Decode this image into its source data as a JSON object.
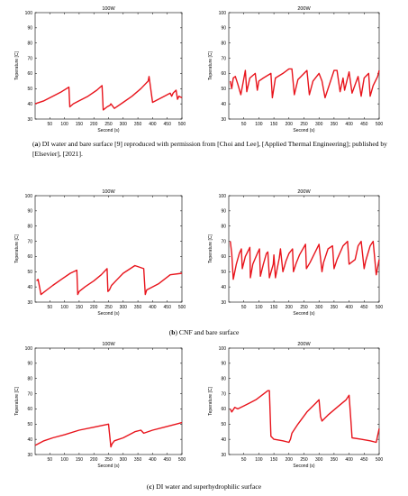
{
  "panels": [
    {
      "label": "a",
      "caption": "DI water and bare surface [9] reproduced with permission from [Choi and Lee], [Applied Thermal Engineering]; published by [Elsevier], [2021]."
    },
    {
      "label": "b",
      "caption": "CNF and bare surface"
    },
    {
      "label": "c",
      "caption": "DI water and superhydrophilic surface"
    }
  ],
  "colors": {
    "line": "#e8141c",
    "axis": "#000000"
  },
  "chart_data": [
    {
      "type": "line",
      "title": "100W",
      "xlabel": "Second (s)",
      "ylabel": "Teperature [C]",
      "xlim": [
        0,
        500
      ],
      "ylim": [
        30,
        100
      ],
      "xticks": [
        50,
        100,
        150,
        200,
        250,
        300,
        350,
        400,
        450,
        500
      ],
      "yticks": [
        30,
        40,
        50,
        60,
        70,
        80,
        90,
        100
      ],
      "series": [
        {
          "x": [
            0,
            30,
            60,
            90,
            115,
            118,
            130,
            150,
            180,
            210,
            228,
            232,
            245,
            255,
            258,
            270,
            300,
            330,
            360,
            385,
            388,
            400,
            420,
            440,
            460,
            465,
            470,
            480,
            485,
            490,
            500
          ],
          "y": [
            40,
            42,
            45,
            48,
            51,
            38,
            40,
            42,
            45,
            49,
            52,
            36,
            38,
            39,
            40,
            37,
            41,
            45,
            50,
            55,
            58,
            41,
            43,
            45,
            47,
            45,
            47,
            49,
            43,
            45,
            44
          ]
        }
      ]
    },
    {
      "type": "line",
      "title": "200W",
      "xlabel": "Second (s)",
      "ylabel": "Teperature [C]",
      "xlim": [
        0,
        500
      ],
      "ylim": [
        30,
        100
      ],
      "xticks": [
        50,
        100,
        150,
        200,
        250,
        300,
        350,
        400,
        450,
        500
      ],
      "yticks": [
        30,
        40,
        50,
        60,
        70,
        80,
        90,
        100
      ],
      "series": [
        {
          "x": [
            5,
            10,
            15,
            22,
            30,
            40,
            55,
            60,
            70,
            88,
            95,
            100,
            115,
            140,
            145,
            155,
            180,
            200,
            210,
            218,
            230,
            255,
            260,
            268,
            280,
            300,
            310,
            320,
            350,
            360,
            370,
            380,
            385,
            400,
            410,
            430,
            440,
            450,
            465,
            470,
            480,
            495,
            500
          ],
          "y": [
            55,
            50,
            57,
            58,
            53,
            46,
            62,
            48,
            57,
            60,
            49,
            55,
            57,
            60,
            44,
            57,
            60,
            63,
            63,
            46,
            56,
            61,
            62,
            46,
            55,
            60,
            55,
            44,
            62,
            62,
            48,
            57,
            49,
            61,
            47,
            58,
            45,
            57,
            60,
            45,
            52,
            58,
            62
          ]
        }
      ]
    },
    {
      "type": "line",
      "title": "100W",
      "xlabel": "Second (s)",
      "ylabel": "Teperature [C]",
      "xlim": [
        0,
        500
      ],
      "ylim": [
        30,
        100
      ],
      "xticks": [
        50,
        100,
        150,
        200,
        250,
        300,
        350,
        400,
        450,
        500
      ],
      "yticks": [
        30,
        40,
        50,
        60,
        70,
        80,
        90,
        100
      ],
      "series": [
        {
          "x": [
            5,
            10,
            20,
            40,
            60,
            90,
            120,
            142,
            145,
            150,
            170,
            200,
            225,
            245,
            248,
            253,
            260,
            280,
            300,
            340,
            370,
            375,
            380,
            420,
            460,
            500
          ],
          "y": [
            44,
            45,
            35,
            38,
            41,
            45,
            49,
            51,
            35,
            37,
            40,
            44,
            48,
            52,
            37,
            38,
            41,
            45,
            49,
            54,
            52,
            35,
            38,
            42,
            48,
            49
          ]
        }
      ]
    },
    {
      "type": "line",
      "title": "200W",
      "xlabel": "Second (s)",
      "ylabel": "Teperature [C]",
      "xlim": [
        0,
        500
      ],
      "ylim": [
        30,
        100
      ],
      "xticks": [
        50,
        100,
        150,
        200,
        250,
        300,
        350,
        400,
        450,
        500
      ],
      "yticks": [
        30,
        40,
        50,
        60,
        70,
        80,
        90,
        100
      ],
      "series": [
        {
          "x": [
            5,
            10,
            15,
            25,
            35,
            42,
            45,
            55,
            70,
            72,
            80,
            95,
            102,
            105,
            115,
            125,
            130,
            135,
            148,
            150,
            155,
            168,
            172,
            180,
            190,
            200,
            212,
            215,
            225,
            235,
            255,
            258,
            270,
            285,
            300,
            310,
            315,
            330,
            345,
            350,
            360,
            380,
            395,
            400,
            420,
            430,
            440,
            450,
            455,
            470,
            480,
            490,
            500
          ],
          "y": [
            70,
            62,
            45,
            55,
            62,
            65,
            52,
            60,
            66,
            46,
            55,
            62,
            65,
            47,
            55,
            62,
            63,
            46,
            55,
            61,
            46,
            59,
            65,
            50,
            57,
            62,
            65,
            50,
            56,
            61,
            68,
            52,
            56,
            62,
            68,
            50,
            56,
            65,
            67,
            52,
            58,
            67,
            70,
            55,
            58,
            67,
            70,
            52,
            57,
            67,
            70,
            48,
            58
          ]
        }
      ]
    },
    {
      "type": "line",
      "title": "100W",
      "xlabel": "Second (s)",
      "ylabel": "Teperature [C]",
      "xlim": [
        0,
        500
      ],
      "ylim": [
        30,
        100
      ],
      "xticks": [
        50,
        100,
        150,
        200,
        250,
        300,
        350,
        400,
        450,
        500
      ],
      "yticks": [
        30,
        40,
        50,
        60,
        70,
        80,
        90,
        100
      ],
      "series": [
        {
          "x": [
            0,
            30,
            60,
            100,
            150,
            200,
            250,
            258,
            262,
            270,
            300,
            340,
            360,
            370,
            400,
            440,
            480,
            500
          ],
          "y": [
            36,
            39,
            41,
            43,
            46,
            48,
            50,
            35,
            37,
            39,
            41,
            45,
            46,
            44,
            46,
            48,
            50,
            51
          ]
        }
      ]
    },
    {
      "type": "line",
      "title": "200W",
      "xlabel": "Second (s)",
      "ylabel": "Teperature [C]",
      "xlim": [
        0,
        500
      ],
      "ylim": [
        30,
        100
      ],
      "xticks": [
        50,
        100,
        150,
        200,
        250,
        300,
        350,
        400,
        450,
        500
      ],
      "yticks": [
        30,
        40,
        50,
        60,
        70,
        80,
        90,
        100
      ],
      "series": [
        {
          "x": [
            5,
            10,
            20,
            30,
            50,
            70,
            90,
            110,
            130,
            135,
            140,
            150,
            180,
            200,
            205,
            210,
            230,
            260,
            290,
            300,
            305,
            310,
            330,
            360,
            390,
            400,
            405,
            410,
            440,
            470,
            490,
            500
          ],
          "y": [
            60,
            58,
            61,
            60,
            62,
            64,
            66,
            69,
            72,
            72,
            42,
            40,
            39,
            38,
            40,
            44,
            50,
            58,
            64,
            66,
            55,
            52,
            56,
            61,
            66,
            69,
            55,
            41,
            40,
            39,
            38,
            47
          ]
        }
      ]
    }
  ]
}
